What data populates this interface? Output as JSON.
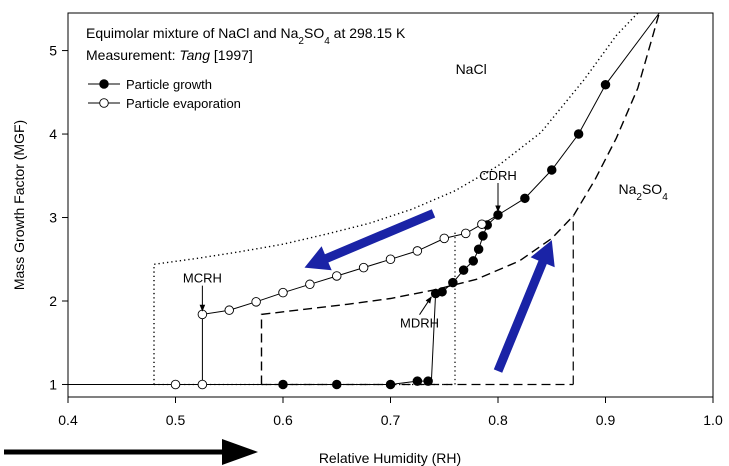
{
  "chart_data": {
    "type": "line",
    "title_lines": [
      {
        "parts": [
          {
            "t": "Equimolar mixture of NaCl and Na"
          },
          {
            "t": "2",
            "sub": true
          },
          {
            "t": "SO"
          },
          {
            "t": "4",
            "sub": true
          },
          {
            "t": " at 298.15 K"
          }
        ]
      },
      {
        "parts": [
          {
            "t": "Measurement: "
          },
          {
            "t": "Tang",
            "italic": true
          },
          {
            "t": " [1997]"
          }
        ]
      }
    ],
    "xlabel": "Relative Humidity (RH)",
    "ylabel": "Mass Growth Factor (MGF)",
    "xlim": [
      0.4,
      1.0
    ],
    "ylim": [
      0.85,
      5.45
    ],
    "x_ticks": [
      0.4,
      0.5,
      0.6,
      0.7,
      0.8,
      0.9,
      1.0
    ],
    "x_tick_labels": [
      "0.4",
      "0.5",
      "0.6",
      "0.7",
      "0.8",
      "0.9",
      "1.0"
    ],
    "y_ticks": [
      1,
      2,
      3,
      4,
      5
    ],
    "y_tick_labels": [
      "1",
      "2",
      "3",
      "4",
      "5"
    ],
    "grid": false,
    "legend_position": "top-left",
    "series": [
      {
        "name": "Particle growth",
        "marker": "filled-circle",
        "line": "solid",
        "x": [
          0.4,
          0.6,
          0.65,
          0.7,
          0.725,
          0.735,
          0.738,
          0.742,
          0.748,
          0.758,
          0.768,
          0.777,
          0.782,
          0.786,
          0.79,
          0.8,
          0.825,
          0.85,
          0.875,
          0.9,
          0.95
        ],
        "y": [
          1.0,
          1.0,
          1.0,
          1.0,
          1.04,
          1.04,
          1.04,
          2.09,
          2.11,
          2.22,
          2.37,
          2.48,
          2.62,
          2.78,
          2.91,
          3.03,
          3.23,
          3.57,
          4.0,
          4.59,
          5.45
        ],
        "markers_at": [
          1,
          2,
          3,
          4,
          5,
          7,
          8,
          9,
          10,
          11,
          12,
          13,
          14,
          15,
          16,
          17,
          18,
          19
        ]
      },
      {
        "name": "Particle evaporation",
        "marker": "open-circle",
        "line": "solid",
        "x": [
          0.5,
          0.525,
          0.525,
          0.55,
          0.575,
          0.6,
          0.625,
          0.65,
          0.675,
          0.7,
          0.725,
          0.75,
          0.77,
          0.785,
          0.8
        ],
        "y": [
          1.0,
          1.0,
          1.84,
          1.89,
          1.99,
          2.1,
          2.2,
          2.3,
          2.4,
          2.5,
          2.6,
          2.75,
          2.81,
          2.92,
          3.03
        ],
        "markers_at": [
          0,
          1,
          2,
          3,
          4,
          5,
          6,
          7,
          8,
          9,
          10,
          11,
          12,
          13
        ]
      },
      {
        "name": "NaCl",
        "line": "dotted",
        "x": [
          0.48,
          0.48,
          0.52,
          0.56,
          0.6,
          0.64,
          0.68,
          0.72,
          0.76,
          0.8,
          0.84,
          0.88,
          0.91,
          0.93,
          0.94
        ],
        "y": [
          1.0,
          2.44,
          2.51,
          2.59,
          2.68,
          2.8,
          2.93,
          3.1,
          3.32,
          3.62,
          4.02,
          4.65,
          5.18,
          5.45,
          5.45
        ],
        "draw_to": 13
      },
      {
        "name": "Na2SO4",
        "line": "dashed",
        "x": [
          0.58,
          0.58,
          0.62,
          0.66,
          0.7,
          0.74,
          0.78,
          0.82,
          0.85,
          0.87,
          0.89,
          0.91,
          0.93,
          0.95,
          0.96
        ],
        "y": [
          1.0,
          1.84,
          1.9,
          1.96,
          2.03,
          2.13,
          2.26,
          2.48,
          2.75,
          3.02,
          3.45,
          3.95,
          4.55,
          5.45,
          5.45
        ],
        "draw_to": 13
      }
    ],
    "guide_lines": [
      {
        "name": "NaCl-vertical",
        "style": "dotted",
        "x": [
          0.76,
          0.76
        ],
        "y": [
          1.0,
          2.85
        ]
      },
      {
        "name": "Na2SO4-vertical",
        "style": "dashed",
        "x": [
          0.87,
          0.87
        ],
        "y": [
          1.0,
          3.02
        ]
      }
    ],
    "legend": [
      {
        "label": "Particle growth",
        "marker": "filled"
      },
      {
        "label": "Particle evaporation",
        "marker": "open"
      }
    ],
    "annotations": [
      {
        "name": "label-nacl",
        "parts": [
          {
            "t": "NaCl"
          }
        ],
        "x": 0.775,
        "y": 4.72
      },
      {
        "name": "label-na2so4",
        "parts": [
          {
            "t": "Na"
          },
          {
            "t": "2",
            "sub": true
          },
          {
            "t": "SO"
          },
          {
            "t": "4",
            "sub": true
          }
        ],
        "x": 0.935,
        "y": 3.28
      },
      {
        "name": "label-cdrh",
        "parts": [
          {
            "t": "CDRH"
          }
        ],
        "x": 0.8,
        "y": 3.45,
        "arrow_to": [
          0.8,
          3.07
        ]
      },
      {
        "name": "label-mcrh",
        "parts": [
          {
            "t": "MCRH"
          }
        ],
        "x": 0.525,
        "y": 2.22,
        "arrow_to": [
          0.525,
          1.88
        ]
      },
      {
        "name": "label-mdrh",
        "parts": [
          {
            "t": "MDRH"
          }
        ],
        "x": 0.727,
        "y": 1.68,
        "arrow_to": [
          0.738,
          2.05
        ]
      }
    ],
    "direction_arrows": [
      {
        "name": "evaporation-direction-arrow",
        "from": [
          0.74,
          3.05
        ],
        "to": [
          0.62,
          2.4
        ],
        "color": "#1a23a6"
      },
      {
        "name": "growth-direction-arrow",
        "from": [
          0.8,
          1.16
        ],
        "to": [
          0.85,
          2.73
        ],
        "color": "#1a23a6"
      }
    ]
  }
}
